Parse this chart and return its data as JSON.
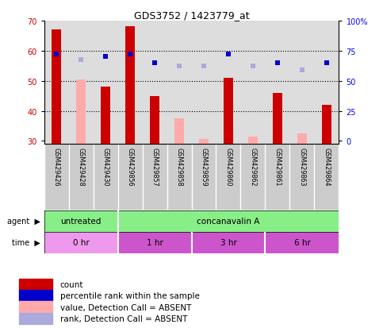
{
  "title": "GDS3752 / 1423779_at",
  "samples": [
    "GSM429426",
    "GSM429428",
    "GSM429430",
    "GSM429856",
    "GSM429857",
    "GSM429858",
    "GSM429859",
    "GSM429860",
    "GSM429862",
    "GSM429861",
    "GSM429863",
    "GSM429864"
  ],
  "bar_heights_red": [
    67,
    0,
    48,
    68,
    45,
    0,
    0,
    51,
    0,
    46,
    0,
    42
  ],
  "bar_heights_pink": [
    0,
    50.5,
    0,
    0,
    0,
    37.5,
    30.5,
    0,
    31.5,
    0,
    32.5,
    0
  ],
  "dot_blue_dark": [
    59,
    null,
    58,
    59,
    56,
    null,
    null,
    59,
    null,
    56,
    null,
    56
  ],
  "dot_blue_light": [
    null,
    57,
    null,
    null,
    null,
    55,
    55,
    null,
    55,
    null,
    53.5,
    null
  ],
  "ylim_min": 29,
  "ylim_max": 70,
  "yticks_left": [
    30,
    40,
    50,
    60,
    70
  ],
  "yticks_right_labels": [
    "0",
    "25",
    "50",
    "75",
    "100%"
  ],
  "yticks_right_vals": [
    30,
    40,
    50,
    60,
    70
  ],
  "agent_segments": [
    {
      "text": "untreated",
      "start": 0,
      "end": 3,
      "color": "#88ee88"
    },
    {
      "text": "concanavalin A",
      "start": 3,
      "end": 12,
      "color": "#88ee88"
    }
  ],
  "time_segments": [
    {
      "text": "0 hr",
      "start": 0,
      "end": 3,
      "color": "#ee99ee"
    },
    {
      "text": "1 hr",
      "start": 3,
      "end": 6,
      "color": "#cc55cc"
    },
    {
      "text": "3 hr",
      "start": 6,
      "end": 9,
      "color": "#cc55cc"
    },
    {
      "text": "6 hr",
      "start": 9,
      "end": 12,
      "color": "#cc55cc"
    }
  ],
  "legend_items": [
    {
      "label": "count",
      "color": "#cc0000"
    },
    {
      "label": "percentile rank within the sample",
      "color": "#0000cc"
    },
    {
      "label": "value, Detection Call = ABSENT",
      "color": "#ffaaaa"
    },
    {
      "label": "rank, Detection Call = ABSENT",
      "color": "#aaaadd"
    }
  ],
  "bar_width": 0.4,
  "plot_bg": "#dddddd",
  "label_bg": "#cccccc",
  "grid_lines": [
    40,
    50,
    60
  ]
}
